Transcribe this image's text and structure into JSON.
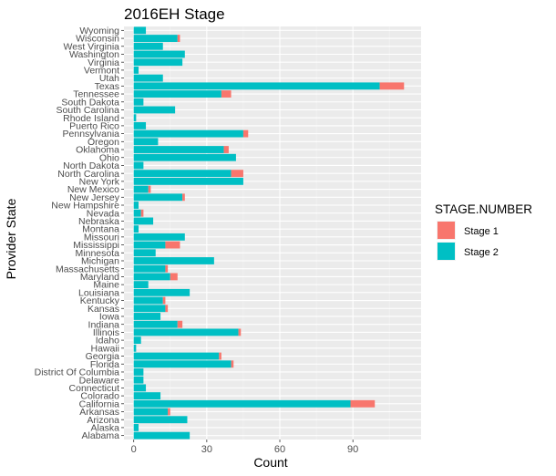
{
  "chart_data": {
    "type": "bar",
    "orientation": "horizontal",
    "stacked": true,
    "title": "2016EH Stage",
    "xlabel": "Count",
    "ylabel": "Provider State",
    "xlim": [
      -4,
      118
    ],
    "xticks": [
      0,
      30,
      60,
      90
    ],
    "grid": true,
    "legend": {
      "title": "STAGE.NUMBER",
      "position": "right",
      "entries": [
        {
          "name": "Stage 1",
          "color": "#F8766D"
        },
        {
          "name": "Stage 2",
          "color": "#00BFC4"
        }
      ]
    },
    "categories": [
      "Wyoming",
      "Wisconsin",
      "West Virginia",
      "Washington",
      "Virginia",
      "Vermont",
      "Utah",
      "Texas",
      "Tennessee",
      "South Dakota",
      "South Carolina",
      "Rhode Island",
      "Puerto Rico",
      "Pennsylvania",
      "Oregon",
      "Oklahoma",
      "Ohio",
      "North Dakota",
      "North Carolina",
      "New York",
      "New Mexico",
      "New Jersey",
      "New Hampshire",
      "Nevada",
      "Nebraska",
      "Montana",
      "Missouri",
      "Mississippi",
      "Minnesota",
      "Michigan",
      "Massachusetts",
      "Maryland",
      "Maine",
      "Louisiana",
      "Kentucky",
      "Kansas",
      "Iowa",
      "Indiana",
      "Illinois",
      "Idaho",
      "Hawaii",
      "Georgia",
      "Florida",
      "District Of Columbia",
      "Delaware",
      "Connecticut",
      "Colorado",
      "California",
      "Arkansas",
      "Arizona",
      "Alaska",
      "Alabama"
    ],
    "series": [
      {
        "name": "Stage 2",
        "color": "#00BFC4",
        "values": [
          5,
          18,
          12,
          21,
          20,
          2,
          12,
          101,
          36,
          4,
          17,
          1,
          5,
          45,
          10,
          37,
          42,
          4,
          40,
          45,
          6,
          20,
          2,
          3,
          8,
          2,
          21,
          13,
          9,
          33,
          13,
          15,
          6,
          23,
          12,
          13,
          11,
          18,
          43,
          3,
          1,
          35,
          40,
          4,
          4,
          5,
          11,
          89,
          14,
          22,
          2,
          23
        ]
      },
      {
        "name": "Stage 1",
        "color": "#F8766D",
        "values": [
          0,
          1,
          0,
          0,
          0,
          0,
          0,
          10,
          4,
          0,
          0,
          0,
          0,
          2,
          0,
          2,
          0,
          0,
          5,
          0,
          1,
          1,
          0,
          1,
          0,
          0,
          0,
          6,
          0,
          0,
          1,
          3,
          0,
          0,
          1,
          1,
          0,
          2,
          1,
          0,
          0,
          1,
          1,
          0,
          0,
          0,
          0,
          10,
          1,
          0,
          0,
          0
        ]
      }
    ]
  }
}
